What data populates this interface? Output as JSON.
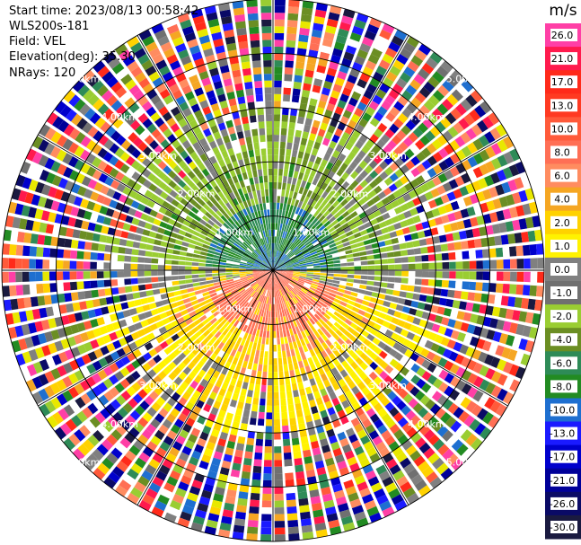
{
  "header": {
    "start_time": "Start time: 2023/08/13 00:58:42",
    "instrument": "WLS200s-181",
    "field": "Field: VEL",
    "elevation": "Elevation(deg): 35.30",
    "nrays": "NRays: 120"
  },
  "colorbar": {
    "unit": "m/s",
    "ticks": [
      "26.0",
      "21.0",
      "17.0",
      "13.0",
      "10.0",
      "8.0",
      "6.0",
      "4.0",
      "2.0",
      "1.0",
      "0.0",
      "-1.0",
      "-2.0",
      "-4.0",
      "-6.0",
      "-8.0",
      "-10.0",
      "-13.0",
      "-17.0",
      "-21.0",
      "-26.0",
      "-30.0"
    ],
    "colors": [
      "#ff3fa6",
      "#ff1a4d",
      "#ff2a1a",
      "#ff3a22",
      "#ff5a3a",
      "#ff6f55",
      "#ff8c60",
      "#f5a623",
      "#ffd200",
      "#fff200",
      "#808080",
      "#707070",
      "#9acd32",
      "#6b8e23",
      "#2e8b57",
      "#228b22",
      "#1e6fd0",
      "#1a1aff",
      "#0000cc",
      "#000099",
      "#0a0a66",
      "#1a1a40"
    ]
  },
  "chart_data": {
    "type": "ppi",
    "title": "",
    "field": "VEL",
    "units": "m/s",
    "nrays": 120,
    "range_rings_km": [
      1.0,
      2.0,
      3.0,
      4.0,
      5.0
    ],
    "ring_labels": [
      "1.00km",
      "2.00km",
      "3.00km",
      "4.00km",
      "5.00km"
    ],
    "spokes_deg": [
      0,
      30,
      60,
      90,
      120,
      150,
      180,
      210,
      240,
      270,
      300,
      330
    ],
    "max_range_km": 5.0
  }
}
